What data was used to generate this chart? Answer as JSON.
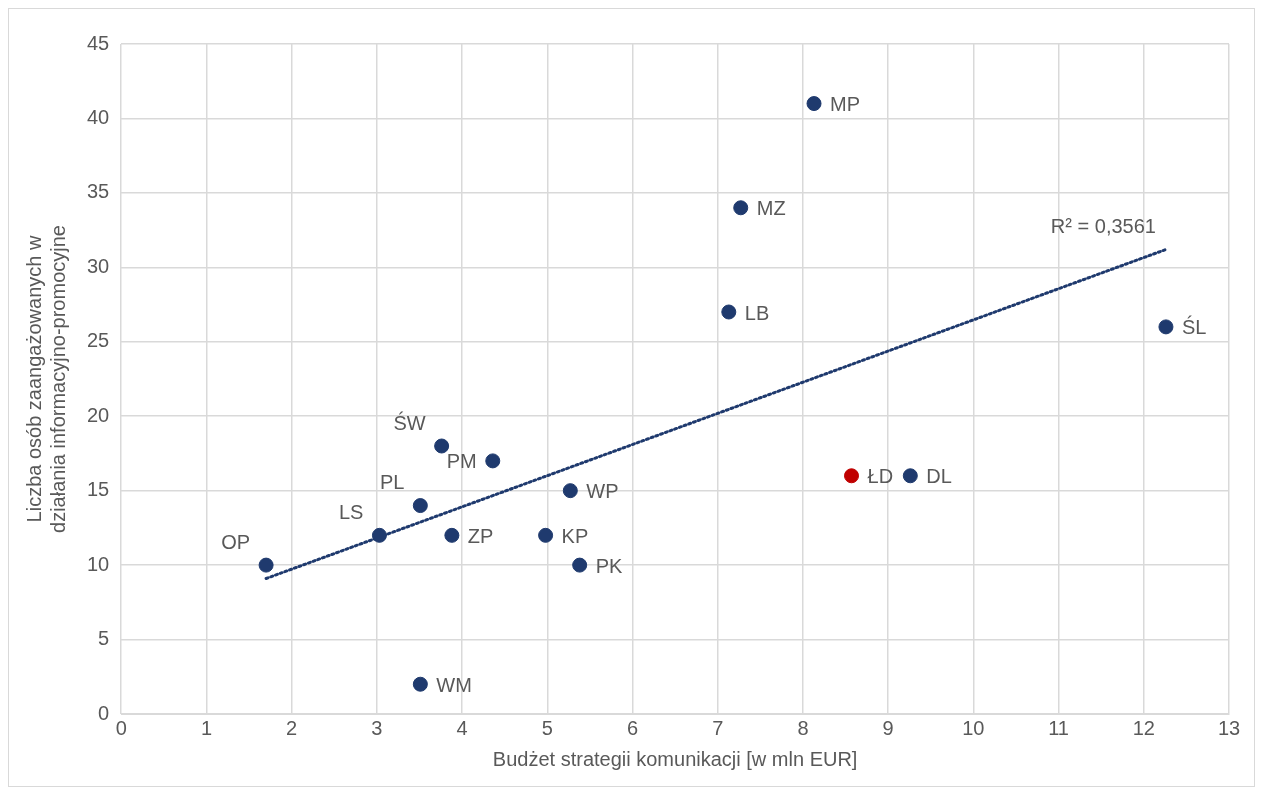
{
  "chart_data": {
    "type": "scatter",
    "xlabel": "Budżet strategii komunikacji [w mln EUR]",
    "ylabel": "Liczba osób zaangażowanych w działania informacyjno-promocyjne",
    "xlim": [
      0,
      13
    ],
    "xticks": [
      0,
      1,
      2,
      3,
      4,
      5,
      6,
      7,
      8,
      9,
      10,
      11,
      12,
      13
    ],
    "ylim": [
      0,
      45
    ],
    "yticks": [
      0,
      5,
      10,
      15,
      20,
      25,
      30,
      35,
      40,
      45
    ],
    "grid": true,
    "legend": false,
    "marker": "circle",
    "series": [
      {
        "type": "scatter",
        "x": [
          1.7,
          3.03,
          3.51,
          3.76,
          3.88,
          4.36,
          3.51,
          4.98,
          5.27,
          5.38,
          7.13,
          7.27,
          8.13,
          8.57,
          9.26,
          12.26
        ],
        "values": [
          10,
          12,
          14,
          18,
          12,
          17,
          2,
          12,
          15,
          10,
          27,
          34,
          41,
          16,
          16,
          26
        ],
        "colors": [
          "#1f3a6e",
          "#1f3a6e",
          "#1f3a6e",
          "#1f3a6e",
          "#1f3a6e",
          "#1f3a6e",
          "#1f3a6e",
          "#1f3a6e",
          "#1f3a6e",
          "#1f3a6e",
          "#1f3a6e",
          "#1f3a6e",
          "#1f3a6e",
          "#c00000",
          "#1f3a6e",
          "#1f3a6e"
        ],
        "value_labels": [
          "OP",
          "LS",
          "PL",
          "ŚW",
          "ZP",
          "PM",
          "WM",
          "KP",
          "WP",
          "PK",
          "LB",
          "MZ",
          "MP",
          "ŁD",
          "DL",
          "ŚL"
        ]
      },
      {
        "type": "line",
        "x": [
          1.7,
          12.26
        ],
        "values": [
          9.1,
          31.2
        ],
        "color": "#1f3a6e",
        "line_style": "dotted",
        "marker": "none"
      }
    ],
    "annotations": [
      "R² = 0,3561"
    ]
  }
}
